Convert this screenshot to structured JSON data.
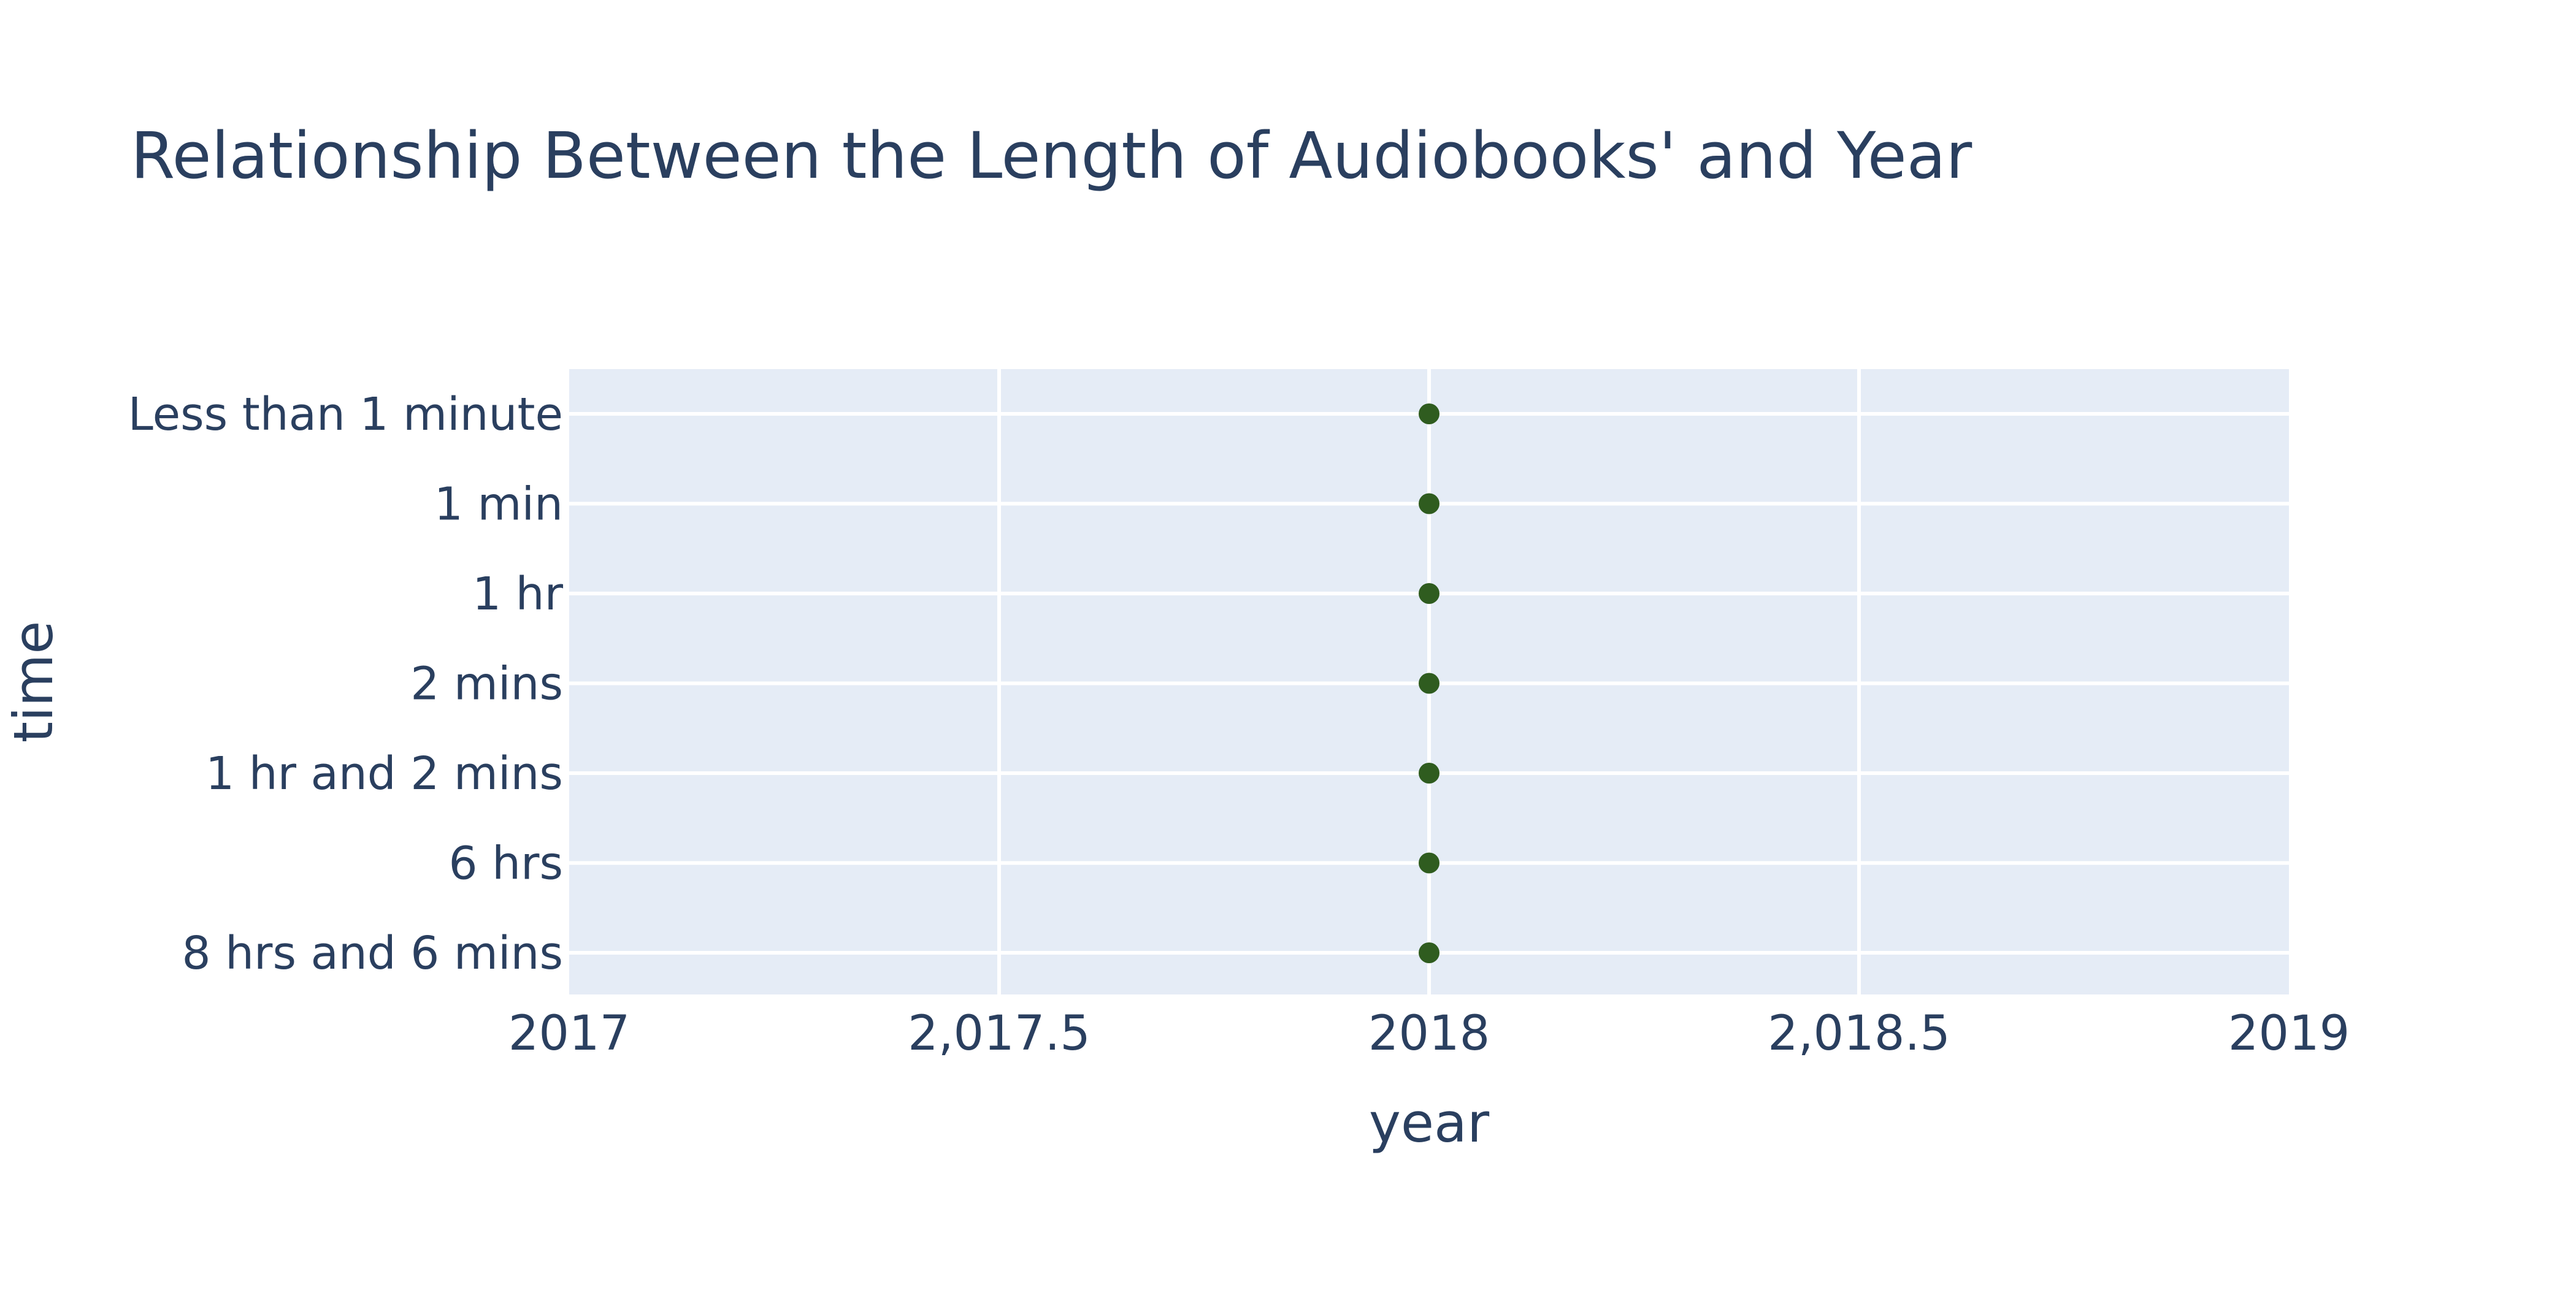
{
  "chart_data": {
    "type": "scatter",
    "title": "Relationship Between the Length of Audiobooks' and Year",
    "xlabel": "year",
    "ylabel": "time",
    "xlim": [
      2017,
      2019
    ],
    "x_ticks": [
      {
        "value": 2017,
        "label": "2017"
      },
      {
        "value": 2017.5,
        "label": "2,017.5"
      },
      {
        "value": 2018,
        "label": "2018"
      },
      {
        "value": 2018.5,
        "label": "2,018.5"
      },
      {
        "value": 2019,
        "label": "2019"
      }
    ],
    "categories": [
      "Less than 1 minute",
      "1 min",
      "1 hr",
      "2 mins",
      "1 hr and 2 mins",
      "6 hrs",
      "8 hrs and 6 mins"
    ],
    "points": [
      {
        "x": 2018,
        "y": "Less than 1 minute"
      },
      {
        "x": 2018,
        "y": "1 min"
      },
      {
        "x": 2018,
        "y": "1 hr"
      },
      {
        "x": 2018,
        "y": "2 mins"
      },
      {
        "x": 2018,
        "y": "1 hr and 2 mins"
      },
      {
        "x": 2018,
        "y": "6 hrs"
      },
      {
        "x": 2018,
        "y": "8 hrs and 6 mins"
      }
    ],
    "grid": true,
    "legend": "none",
    "colors": {
      "marker": "#2f5c1f",
      "plot_bg": "#e5ecf6",
      "grid": "#ffffff",
      "text": "#2a3f5f"
    }
  }
}
